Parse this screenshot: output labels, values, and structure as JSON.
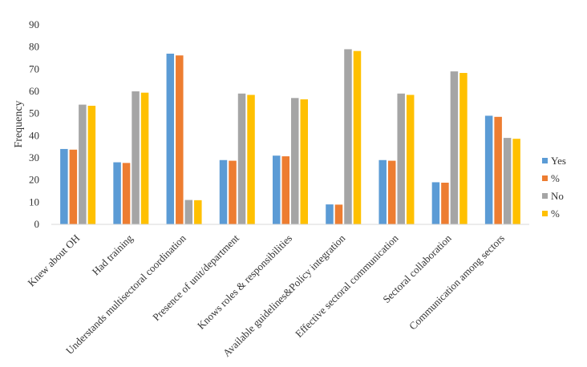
{
  "chart_data": {
    "type": "bar",
    "title": "",
    "xlabel": "",
    "ylabel": "Frequency",
    "ylim": [
      0,
      90
    ],
    "yticks": [
      0,
      10,
      20,
      30,
      40,
      50,
      60,
      70,
      80,
      90
    ],
    "grid": false,
    "legend_position": "right",
    "categories": [
      "Knew about OH",
      "Had training",
      "Understands multisectoral coordination",
      "Presence of unit/department",
      "Knows roles & responsibilities",
      "Available guidelines&Policy integration",
      "Effective sectoral communication",
      "Sectoral collaboration",
      "Communication among sectors"
    ],
    "series": [
      {
        "name": "Yes",
        "color": "#5B9BD5",
        "values": [
          34,
          28,
          77,
          29,
          31,
          9,
          29,
          19,
          49
        ]
      },
      {
        "name": "%",
        "color": "#ED7D31",
        "values": [
          33.7,
          27.7,
          76.2,
          28.7,
          30.7,
          8.9,
          28.7,
          18.8,
          48.5
        ]
      },
      {
        "name": "No",
        "color": "#A5A5A5",
        "values": [
          54,
          60,
          11,
          59,
          57,
          79,
          59,
          69,
          39
        ]
      },
      {
        "name": "%",
        "color": "#FFC000",
        "values": [
          53.5,
          59.4,
          10.9,
          58.4,
          56.4,
          78.2,
          58.4,
          68.3,
          38.6
        ]
      }
    ]
  }
}
